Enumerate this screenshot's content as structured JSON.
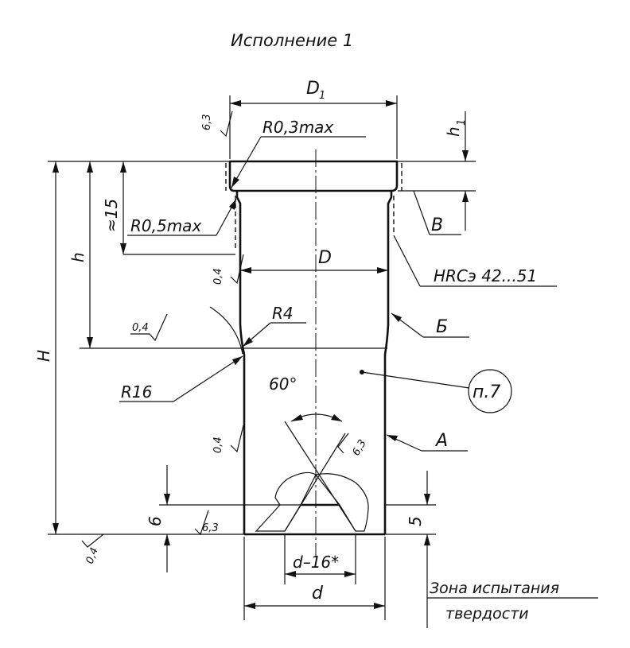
{
  "title": "Исполнение 1",
  "dimensions": {
    "d1": "D",
    "d1_sub": "1",
    "h1": "h",
    "h1_sub": "1",
    "d_main": "D",
    "d_small": "d",
    "d_minus": "d–16*",
    "h_total": "H",
    "h_partial": "h",
    "approx15": "≈15",
    "six": "6",
    "five": "5",
    "angle": "60°"
  },
  "radii": {
    "r03": "R0,3max",
    "r05": "R0,5max",
    "r4": "R4",
    "r16": "R16"
  },
  "surface_labels": {
    "b_cyr": "Б",
    "a_cyr": "А",
    "b_lat": "В"
  },
  "hardness": "HRCэ 42...51",
  "note_ref": "п.7",
  "roughness": {
    "r63_top": "6,3",
    "r04_left": "0,4",
    "r04_fillet": "0,4",
    "r04_lower": "0,4",
    "r63_cone": "6,3",
    "r63_base": "6,3",
    "r04_base": "0,4"
  },
  "zone": {
    "line1": "Зона испытания",
    "line2": "твердости"
  }
}
